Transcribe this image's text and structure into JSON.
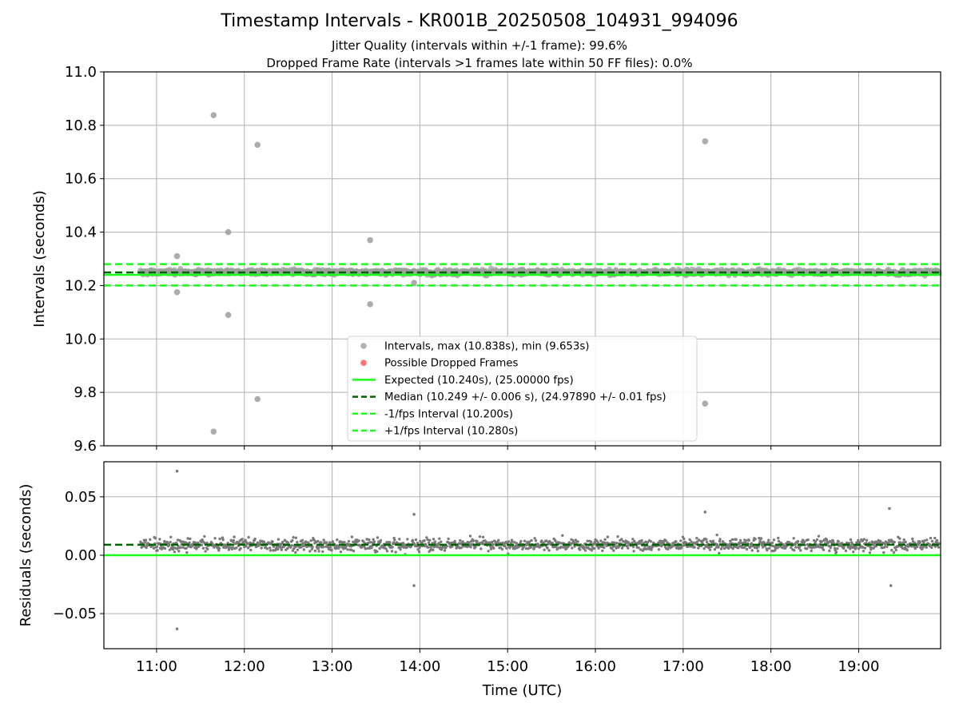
{
  "figure": {
    "title": "Timestamp Intervals - KR001B_20250508_104931_994096",
    "subtitle_1": "Jitter Quality (intervals within +/-1 frame): 99.6%",
    "subtitle_2": "Dropped Frame Rate (intervals >1 frames late within 50 FF files): 0.0%"
  },
  "colors": {
    "intervals": "#9e9e9e",
    "residuals": "#7a7a7a",
    "dropped": "#ff4d4d",
    "expected": "#1aff1a",
    "median": "#006400",
    "fps_bounds": "#1aff1a",
    "grid": "#b0b0b0"
  },
  "chart_data": [
    {
      "type": "scatter",
      "panel": "top",
      "xlabel": "",
      "ylabel": "Intervals (seconds)",
      "xlim": [
        "10:24",
        "19:56"
      ],
      "ylim": [
        9.6,
        11.0
      ],
      "yticks": [
        "9.6",
        "9.8",
        "10.0",
        "10.2",
        "10.4",
        "10.6",
        "10.8",
        "11.0"
      ],
      "grid": true,
      "legend_placement": "lower-center",
      "legend": [
        {
          "label": "Intervals, max (10.838s), min (9.653s)",
          "kind": "marker",
          "color": "#9e9e9e"
        },
        {
          "label": "Possible Dropped Frames",
          "kind": "marker",
          "color": "#ff4d4d"
        },
        {
          "label": "Expected (10.240s), (25.00000 fps)",
          "kind": "solid",
          "color": "#1aff1a"
        },
        {
          "label": "Median (10.249 +/- 0.006 s), (24.97890 +/- 0.01 fps)",
          "kind": "dashed",
          "color": "#006400"
        },
        {
          "label": "-1/fps Interval (10.200s)",
          "kind": "dashed",
          "color": "#1aff1a"
        },
        {
          "label": "+1/fps Interval (10.280s)",
          "kind": "dashed",
          "color": "#1aff1a"
        }
      ],
      "reference_lines": {
        "expected": 10.24,
        "median": 10.249,
        "minus_one_fps": 10.2,
        "plus_one_fps": 10.28
      },
      "data_time_range": [
        "10:49",
        "19:55"
      ],
      "typical_interval_band": [
        10.22,
        10.28
      ],
      "outliers": [
        {
          "time": "11:14",
          "value": 10.31
        },
        {
          "time": "11:14",
          "value": 10.175
        },
        {
          "time": "11:39",
          "value": 10.838
        },
        {
          "time": "11:39",
          "value": 9.653
        },
        {
          "time": "11:49",
          "value": 10.4
        },
        {
          "time": "11:49",
          "value": 10.09
        },
        {
          "time": "12:09",
          "value": 10.727
        },
        {
          "time": "12:09",
          "value": 9.775
        },
        {
          "time": "13:26",
          "value": 10.37
        },
        {
          "time": "13:26",
          "value": 10.13
        },
        {
          "time": "13:56",
          "value": 10.21
        },
        {
          "time": "17:15",
          "value": 10.74
        },
        {
          "time": "17:15",
          "value": 9.758
        }
      ],
      "dropped_frames": []
    },
    {
      "type": "scatter",
      "panel": "bottom",
      "xlabel": "Time (UTC)",
      "ylabel": "Residuals (seconds)",
      "xlim": [
        "10:24",
        "19:56"
      ],
      "ylim": [
        -0.08,
        0.08
      ],
      "yticks": [
        "−0.05",
        "0.00",
        "0.05"
      ],
      "xticks": [
        "11:00",
        "12:00",
        "13:00",
        "14:00",
        "15:00",
        "16:00",
        "17:00",
        "18:00",
        "19:00"
      ],
      "grid": true,
      "reference_lines": {
        "expected": 0.0,
        "median": 0.009
      },
      "typical_residual_band": [
        -0.01,
        0.03
      ],
      "outliers": [
        {
          "time": "11:14",
          "value": 0.072
        },
        {
          "time": "11:14",
          "value": -0.063
        },
        {
          "time": "13:56",
          "value": 0.035
        },
        {
          "time": "13:56",
          "value": -0.026
        },
        {
          "time": "17:15",
          "value": 0.037
        },
        {
          "time": "19:21",
          "value": 0.04
        },
        {
          "time": "19:22",
          "value": -0.026
        }
      ]
    }
  ]
}
